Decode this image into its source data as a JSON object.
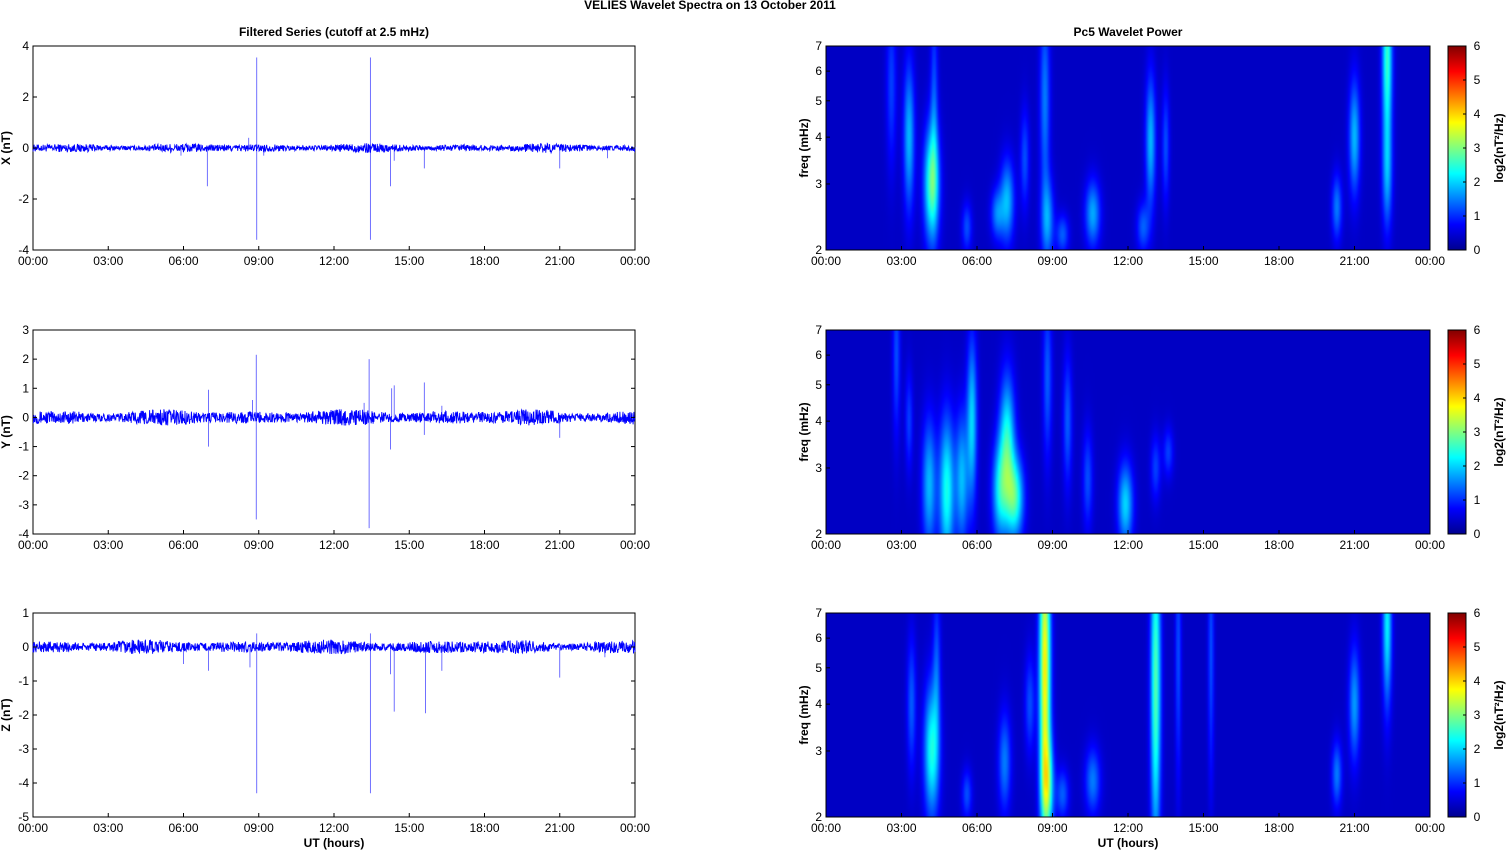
{
  "figure": {
    "title": "VELIES Wavelet Spectra on 13 October   2011"
  },
  "panel_titles": {
    "left": "Filtered Series (cutoff at 2.5 mHz)",
    "right": "Pc5 Wavelet Power"
  },
  "colors": {
    "series": "#0000ff",
    "spectrogram_background": "#00008f"
  },
  "chart_data": [
    {
      "type": "line",
      "title": "Filtered Series (cutoff at 2.5 mHz)",
      "ylabel": "X (nT)",
      "xlabel": "",
      "xlim": [
        "00:00",
        "00:00"
      ],
      "xticks": [
        "00:00",
        "03:00",
        "06:00",
        "09:00",
        "12:00",
        "15:00",
        "18:00",
        "21:00",
        "00:00"
      ],
      "ylim": [
        -4,
        4
      ],
      "yticks": [
        -4,
        -2,
        0,
        2,
        4
      ],
      "baseline_noise_amplitude": 0.12,
      "spikes_hours_value": [
        [
          6.95,
          -1.5
        ],
        [
          8.6,
          0.4
        ],
        [
          8.92,
          3.55
        ],
        [
          8.92,
          -3.6
        ],
        [
          9.2,
          -0.3
        ],
        [
          13.45,
          3.55
        ],
        [
          13.45,
          -3.6
        ],
        [
          14.25,
          -1.5
        ],
        [
          14.4,
          -0.5
        ],
        [
          15.6,
          -0.8
        ],
        [
          21.0,
          -0.8
        ],
        [
          22.9,
          -0.4
        ],
        [
          5.9,
          -0.3
        ]
      ]
    },
    {
      "type": "line",
      "ylabel": "Y (nT)",
      "xlabel": "",
      "xlim": [
        "00:00",
        "00:00"
      ],
      "xticks": [
        "00:00",
        "03:00",
        "06:00",
        "09:00",
        "12:00",
        "15:00",
        "18:00",
        "21:00",
        "00:00"
      ],
      "ylim": [
        -4,
        3
      ],
      "yticks": [
        -4,
        -3,
        -2,
        -1,
        0,
        1,
        2,
        3
      ],
      "baseline_noise_amplitude": 0.18,
      "spikes_hours_value": [
        [
          7.0,
          0.95
        ],
        [
          7.0,
          -1.0
        ],
        [
          8.9,
          2.15
        ],
        [
          8.9,
          -3.5
        ],
        [
          8.75,
          0.6
        ],
        [
          13.4,
          2.0
        ],
        [
          13.4,
          -3.8
        ],
        [
          14.25,
          -1.1
        ],
        [
          14.3,
          1.0
        ],
        [
          14.4,
          1.1
        ],
        [
          15.6,
          1.2
        ],
        [
          15.6,
          -0.6
        ],
        [
          16.3,
          0.4
        ],
        [
          21.0,
          -0.7
        ],
        [
          13.2,
          0.5
        ]
      ]
    },
    {
      "type": "line",
      "ylabel": "Z (nT)",
      "xlabel": "UT (hours)",
      "xlim": [
        "00:00",
        "00:00"
      ],
      "xticks": [
        "00:00",
        "03:00",
        "06:00",
        "09:00",
        "12:00",
        "15:00",
        "18:00",
        "21:00",
        "00:00"
      ],
      "ylim": [
        -5,
        1
      ],
      "yticks": [
        -5,
        -4,
        -3,
        -2,
        -1,
        0,
        1
      ],
      "baseline_noise_amplitude": 0.14,
      "spikes_hours_value": [
        [
          6.0,
          -0.5
        ],
        [
          7.0,
          -0.7
        ],
        [
          8.65,
          -0.6
        ],
        [
          8.92,
          -4.3
        ],
        [
          8.92,
          0.4
        ],
        [
          13.45,
          -4.3
        ],
        [
          13.45,
          0.4
        ],
        [
          14.4,
          -1.9
        ],
        [
          14.25,
          -0.8
        ],
        [
          15.65,
          -1.95
        ],
        [
          16.3,
          -0.7
        ],
        [
          21.0,
          -0.9
        ],
        [
          22.8,
          -0.3
        ]
      ]
    },
    {
      "type": "heatmap",
      "title": "Pc5 Wavelet Power",
      "ylabel": "freq (mHz)",
      "xlabel": "",
      "yscale": "log",
      "ylim": [
        2,
        7
      ],
      "yticks": [
        2,
        3,
        4,
        5,
        6,
        7
      ],
      "xticks": [
        "00:00",
        "03:00",
        "06:00",
        "09:00",
        "12:00",
        "15:00",
        "18:00",
        "21:00",
        "00:00"
      ],
      "colorbar_label": "log2(nT²/Hz)",
      "colorbar_range": [
        0,
        6
      ],
      "colorbar_ticks": [
        0,
        1,
        2,
        3,
        4,
        5,
        6
      ],
      "blobs_hour_freq_power_width_height": [
        [
          2.6,
          5.5,
          0.8,
          0.2,
          0.5
        ],
        [
          3.3,
          4.0,
          1.6,
          0.22,
          0.45
        ],
        [
          4.2,
          3.0,
          2.6,
          0.3,
          0.35
        ],
        [
          4.3,
          5.0,
          0.9,
          0.15,
          0.6
        ],
        [
          5.6,
          2.3,
          0.9,
          0.2,
          0.15
        ],
        [
          6.8,
          2.5,
          1.2,
          0.25,
          0.15
        ],
        [
          7.2,
          2.7,
          1.6,
          0.28,
          0.25
        ],
        [
          7.9,
          3.5,
          0.9,
          0.18,
          0.3
        ],
        [
          8.7,
          5.0,
          1.2,
          0.2,
          0.6
        ],
        [
          8.8,
          2.4,
          1.4,
          0.25,
          0.25
        ],
        [
          9.4,
          2.2,
          1.0,
          0.25,
          0.12
        ],
        [
          10.6,
          2.5,
          1.5,
          0.3,
          0.2
        ],
        [
          12.6,
          2.3,
          1.0,
          0.25,
          0.15
        ],
        [
          12.9,
          3.9,
          1.6,
          0.2,
          0.4
        ],
        [
          13.5,
          3.8,
          0.9,
          0.15,
          0.35
        ],
        [
          20.3,
          2.6,
          1.2,
          0.2,
          0.2
        ],
        [
          21.0,
          4.0,
          1.6,
          0.22,
          0.35
        ],
        [
          22.3,
          3.2,
          1.4,
          0.2,
          0.35
        ],
        [
          22.3,
          6.5,
          2.4,
          0.2,
          0.5
        ]
      ]
    },
    {
      "type": "heatmap",
      "ylabel": "freq (mHz)",
      "xlabel": "",
      "yscale": "log",
      "ylim": [
        2,
        7
      ],
      "yticks": [
        2,
        3,
        4,
        5,
        6,
        7
      ],
      "xticks": [
        "00:00",
        "03:00",
        "06:00",
        "09:00",
        "12:00",
        "15:00",
        "18:00",
        "21:00",
        "00:00"
      ],
      "colorbar_label": "log2(nT²/Hz)",
      "colorbar_range": [
        0,
        6
      ],
      "colorbar_ticks": [
        0,
        1,
        2,
        3,
        4,
        5,
        6
      ],
      "blobs_hour_freq_power_width_height": [
        [
          2.8,
          6.0,
          0.9,
          0.15,
          0.5
        ],
        [
          3.3,
          4.0,
          0.8,
          0.15,
          0.3
        ],
        [
          4.1,
          2.7,
          1.6,
          0.28,
          0.4
        ],
        [
          4.8,
          2.6,
          2.2,
          0.3,
          0.45
        ],
        [
          5.4,
          2.8,
          1.6,
          0.25,
          0.4
        ],
        [
          5.8,
          4.0,
          1.8,
          0.2,
          0.5
        ],
        [
          6.9,
          2.6,
          1.8,
          0.3,
          0.3
        ],
        [
          7.2,
          3.5,
          2.2,
          0.3,
          0.4
        ],
        [
          7.5,
          2.5,
          2.4,
          0.35,
          0.25
        ],
        [
          8.8,
          5.2,
          1.0,
          0.18,
          0.5
        ],
        [
          9.6,
          4.0,
          1.0,
          0.18,
          0.4
        ],
        [
          10.4,
          2.8,
          0.9,
          0.2,
          0.3
        ],
        [
          11.9,
          2.4,
          1.8,
          0.3,
          0.25
        ],
        [
          13.1,
          3.0,
          0.8,
          0.2,
          0.2
        ],
        [
          13.6,
          3.3,
          0.8,
          0.2,
          0.15
        ]
      ]
    },
    {
      "type": "heatmap",
      "ylabel": "freq (mHz)",
      "xlabel": "UT (hours)",
      "yscale": "log",
      "ylim": [
        2,
        7
      ],
      "yticks": [
        2,
        3,
        4,
        5,
        6,
        7
      ],
      "xticks": [
        "00:00",
        "03:00",
        "06:00",
        "09:00",
        "12:00",
        "15:00",
        "18:00",
        "21:00",
        "00:00"
      ],
      "colorbar_label": "log2(nT²/Hz)",
      "colorbar_range": [
        0,
        6
      ],
      "colorbar_ticks": [
        0,
        1,
        2,
        3,
        4,
        5,
        6
      ],
      "blobs_hour_freq_power_width_height": [
        [
          3.4,
          4.0,
          1.0,
          0.18,
          0.4
        ],
        [
          4.2,
          3.0,
          2.2,
          0.3,
          0.4
        ],
        [
          4.4,
          5.0,
          0.9,
          0.15,
          0.5
        ],
        [
          5.6,
          2.3,
          0.9,
          0.2,
          0.15
        ],
        [
          7.1,
          2.8,
          1.2,
          0.25,
          0.3
        ],
        [
          8.1,
          4.0,
          0.9,
          0.2,
          0.3
        ],
        [
          8.7,
          5.0,
          3.8,
          0.22,
          0.9
        ],
        [
          8.8,
          2.4,
          2.2,
          0.25,
          0.3
        ],
        [
          9.4,
          2.3,
          1.0,
          0.25,
          0.15
        ],
        [
          10.6,
          2.5,
          1.2,
          0.3,
          0.2
        ],
        [
          13.1,
          4.5,
          2.6,
          0.2,
          1.0
        ],
        [
          14.0,
          5.5,
          0.9,
          0.12,
          0.8
        ],
        [
          15.3,
          5.5,
          0.9,
          0.12,
          0.8
        ],
        [
          20.3,
          2.6,
          1.2,
          0.2,
          0.2
        ],
        [
          21.0,
          4.0,
          1.4,
          0.22,
          0.35
        ],
        [
          22.3,
          6.5,
          2.0,
          0.18,
          0.5
        ]
      ]
    }
  ]
}
